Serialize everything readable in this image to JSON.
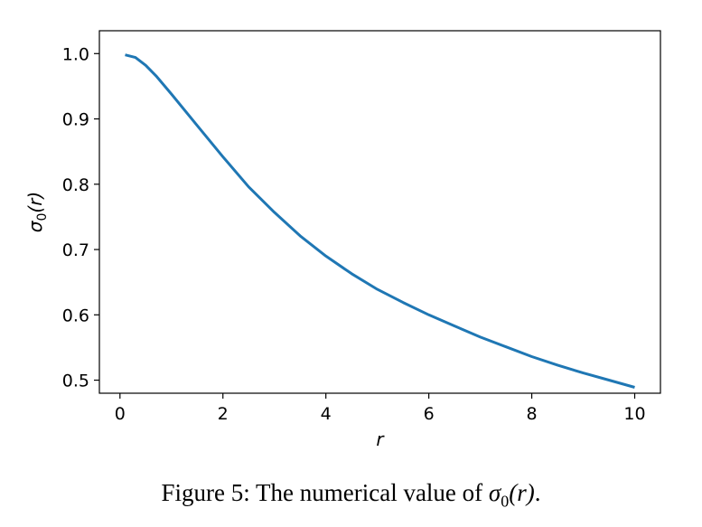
{
  "chart_data": {
    "type": "line",
    "title": "",
    "xlabel": "r",
    "ylabel_main": "σ",
    "ylabel_sub": "0",
    "ylabel_tail": "(r)",
    "xlim": [
      -0.4,
      10.5
    ],
    "ylim": [
      0.48,
      1.035
    ],
    "xticks": [
      0,
      2,
      4,
      6,
      8,
      10
    ],
    "xtick_labels": [
      "0",
      "2",
      "4",
      "6",
      "8",
      "10"
    ],
    "yticks": [
      0.5,
      0.6,
      0.7,
      0.8,
      0.9,
      1.0
    ],
    "ytick_labels": [
      "0.5",
      "0.6",
      "0.7",
      "0.8",
      "0.9",
      "1.0"
    ],
    "grid": false,
    "series": [
      {
        "color": "#1f77b4",
        "x": [
          0.1,
          0.3,
          0.5,
          0.7,
          1.0,
          1.5,
          2.0,
          2.5,
          3.0,
          3.5,
          4.0,
          4.5,
          5.0,
          5.5,
          6.0,
          6.5,
          7.0,
          7.5,
          8.0,
          8.5,
          9.0,
          9.5,
          10.0
        ],
        "y": [
          0.998,
          0.994,
          0.982,
          0.966,
          0.938,
          0.89,
          0.842,
          0.796,
          0.757,
          0.721,
          0.69,
          0.663,
          0.639,
          0.619,
          0.6,
          0.583,
          0.566,
          0.551,
          0.536,
          0.523,
          0.511,
          0.5,
          0.489
        ]
      }
    ]
  },
  "caption": {
    "prefix": "Figure 5: The numerical value of ",
    "math_main": "σ",
    "math_sub": "0",
    "math_tail": "(r)",
    "suffix": "."
  }
}
